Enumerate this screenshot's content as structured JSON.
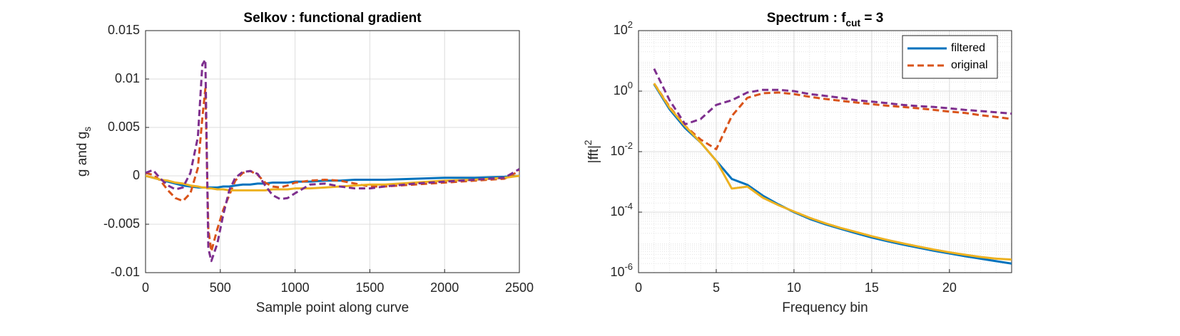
{
  "chart_data": [
    {
      "type": "line",
      "title": "Selkov : functional gradient",
      "xlabel": "Sample point along curve",
      "ylabel": "g and g_s",
      "x": [
        0,
        50,
        100,
        150,
        200,
        250,
        300,
        350,
        380,
        400,
        420,
        440,
        480,
        520,
        560,
        600,
        650,
        700,
        750,
        800,
        850,
        900,
        950,
        1000,
        1100,
        1200,
        1300,
        1400,
        1500,
        1600,
        1800,
        2000,
        2200,
        2400,
        2500
      ],
      "xlim": [
        0,
        2500
      ],
      "xticks": [
        0,
        500,
        1000,
        1500,
        2000,
        2500
      ],
      "ylim": [
        -0.01,
        0.015
      ],
      "yticks": [
        -0.01,
        -0.005,
        0,
        0.005,
        0.01,
        0.015
      ],
      "grid": true,
      "series": [
        {
          "color": "#0072BD",
          "line_style": "-",
          "values": [
            0,
            -0.0002,
            -0.0004,
            -0.0006,
            -0.0008,
            -0.001,
            -0.0011,
            -0.0012,
            -0.0012,
            -0.0012,
            -0.0012,
            -0.0012,
            -0.0012,
            -0.0011,
            -0.0011,
            -0.001,
            -0.0009,
            -0.0009,
            -0.0008,
            -0.0008,
            -0.0007,
            -0.0007,
            -0.0007,
            -0.0006,
            -0.0006,
            -0.0005,
            -0.0005,
            -0.0004,
            -0.0004,
            -0.0004,
            -0.0003,
            -0.0002,
            -0.0002,
            -0.0001,
            0
          ]
        },
        {
          "color": "#D95319",
          "line_style": "--",
          "values": [
            0.0003,
            0.0001,
            -0.0005,
            -0.0015,
            -0.0023,
            -0.0026,
            -0.0018,
            0.0008,
            0.006,
            0.009,
            -0.0055,
            -0.0078,
            -0.0055,
            -0.0035,
            -0.002,
            -0.0005,
            0.0003,
            0.0005,
            0.0001,
            -0.0007,
            -0.0011,
            -0.0012,
            -0.001,
            -0.0007,
            -0.0005,
            -0.0004,
            -0.0005,
            -0.0008,
            -0.0011,
            -0.0011,
            -0.0009,
            -0.0007,
            -0.0005,
            -0.0003,
            0.0005
          ]
        },
        {
          "color": "#EDB120",
          "line_style": "-",
          "values": [
            0,
            -0.0002,
            -0.0004,
            -0.0005,
            -0.0007,
            -0.0008,
            -0.001,
            -0.0011,
            -0.0012,
            -0.0012,
            -0.0013,
            -0.0013,
            -0.0014,
            -0.0014,
            -0.0015,
            -0.0015,
            -0.0015,
            -0.0015,
            -0.0015,
            -0.0015,
            -0.0014,
            -0.0014,
            -0.0014,
            -0.0013,
            -0.0013,
            -0.0012,
            -0.0011,
            -0.001,
            -0.0009,
            -0.0009,
            -0.0007,
            -0.0005,
            -0.0004,
            -0.0002,
            0
          ]
        },
        {
          "color": "#7E2F8E",
          "line_style": "--",
          "values": [
            0.0003,
            0.0006,
            -0.0003,
            -0.001,
            -0.0014,
            -0.0012,
            0.0003,
            0.004,
            0.0115,
            0.012,
            -0.0075,
            -0.0088,
            -0.007,
            -0.004,
            -0.0015,
            -0.0002,
            0.0004,
            0.0005,
            0.0002,
            -0.001,
            -0.002,
            -0.0024,
            -0.0023,
            -0.0018,
            -0.0009,
            -0.0008,
            -0.0011,
            -0.0013,
            -0.0013,
            -0.0011,
            -0.0008,
            -0.0006,
            -0.0004,
            -0.0002,
            0.0007
          ]
        }
      ]
    },
    {
      "type": "line",
      "title": "Spectrum : f_{cut} = 3",
      "xlabel": "Frequency bin",
      "ylabel": "|fft|^2",
      "x": [
        1,
        2,
        3,
        4,
        5,
        6,
        7,
        8,
        9,
        10,
        11,
        12,
        13,
        14,
        15,
        16,
        17,
        18,
        19,
        20,
        21,
        22,
        23,
        24
      ],
      "xlim": [
        0,
        24
      ],
      "xticks": [
        0,
        5,
        10,
        15,
        20
      ],
      "ylim": [
        1e-06,
        100
      ],
      "yscale": "log",
      "yticks": [
        {
          "value": 1e-06,
          "label": "10^{-6}"
        },
        {
          "value": 0.0001,
          "label": "10^{-4}"
        },
        {
          "value": 0.01,
          "label": "10^{-2}"
        },
        {
          "value": 1,
          "label": "10^{0}"
        },
        {
          "value": 100,
          "label": "10^{2}"
        }
      ],
      "grid": true,
      "minor_grid": true,
      "legend": "top-right",
      "series": [
        {
          "name": "filtered",
          "color": "#0072BD",
          "line_style": "-",
          "values": [
            1.7,
            0.25,
            0.06,
            0.02,
            0.005,
            0.00125,
            0.0008,
            0.00035,
            0.00018,
            0.0001,
            6e-05,
            4e-05,
            2.8e-05,
            2e-05,
            1.45e-05,
            1.1e-05,
            8.5e-06,
            6.7e-06,
            5.3e-06,
            4.3e-06,
            3.5e-06,
            2.9e-06,
            2.4e-06,
            2e-06
          ]
        },
        {
          "name": "original",
          "color": "#D95319",
          "line_style": "--",
          "values": [
            1.8,
            0.3,
            0.07,
            0.025,
            0.012,
            0.15,
            0.6,
            0.85,
            0.9,
            0.8,
            0.65,
            0.55,
            0.48,
            0.42,
            0.37,
            0.33,
            0.3,
            0.27,
            0.24,
            0.21,
            0.19,
            0.16,
            0.14,
            0.12
          ]
        },
        {
          "color": "#EDB120",
          "line_style": "-",
          "values": [
            1.8,
            0.28,
            0.07,
            0.02,
            0.005,
            0.0006,
            0.0007,
            0.0003,
            0.00017,
            0.000105,
            6.5e-05,
            4.3e-05,
            3e-05,
            2.2e-05,
            1.6e-05,
            1.2e-05,
            9.3e-06,
            7.3e-06,
            5.8e-06,
            4.7e-06,
            3.9e-06,
            3.3e-06,
            2.9e-06,
            2.7e-06
          ]
        },
        {
          "color": "#7E2F8E",
          "line_style": "--",
          "values": [
            5.5,
            0.5,
            0.08,
            0.12,
            0.35,
            0.5,
            0.9,
            1.1,
            1.1,
            1,
            0.8,
            0.7,
            0.6,
            0.5,
            0.45,
            0.4,
            0.35,
            0.32,
            0.3,
            0.27,
            0.24,
            0.22,
            0.2,
            0.18
          ]
        }
      ]
    }
  ]
}
